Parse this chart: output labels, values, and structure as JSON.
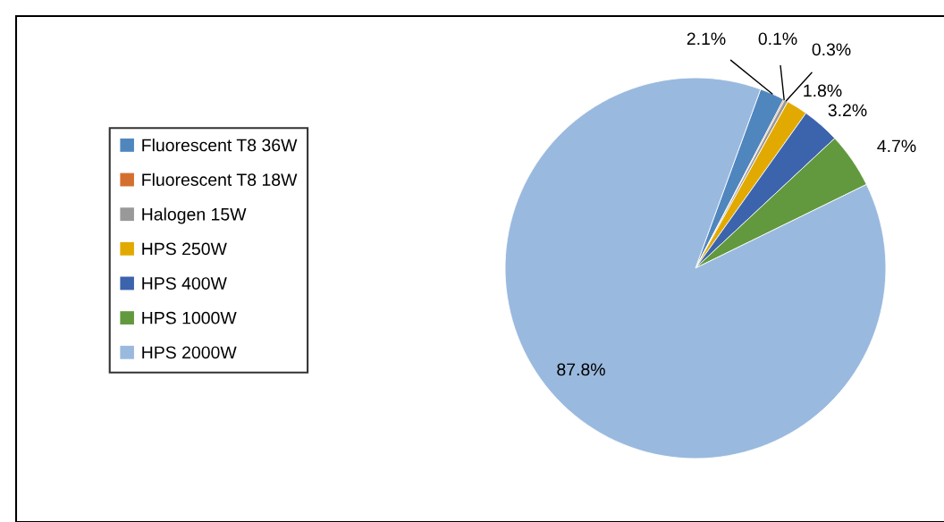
{
  "chart_data": {
    "type": "pie",
    "categories": [
      "Fluorescent T8 36W",
      "Fluorescent T8 18W",
      "Halogen 15W",
      "HPS 250W",
      "HPS 400W",
      "HPS 1000W",
      "HPS 2000W"
    ],
    "values": [
      2.1,
      0.1,
      0.3,
      1.8,
      3.2,
      4.7,
      87.8
    ],
    "colors": [
      "#4f86be",
      "#d4702f",
      "#999999",
      "#e2aa00",
      "#3c64ad",
      "#62993e",
      "#9ab9df"
    ],
    "value_labels": [
      "2.1%",
      "0.1%",
      "0.3%",
      "1.8%",
      "3.2%",
      "4.7%",
      "87.8%"
    ],
    "legend": "left"
  }
}
